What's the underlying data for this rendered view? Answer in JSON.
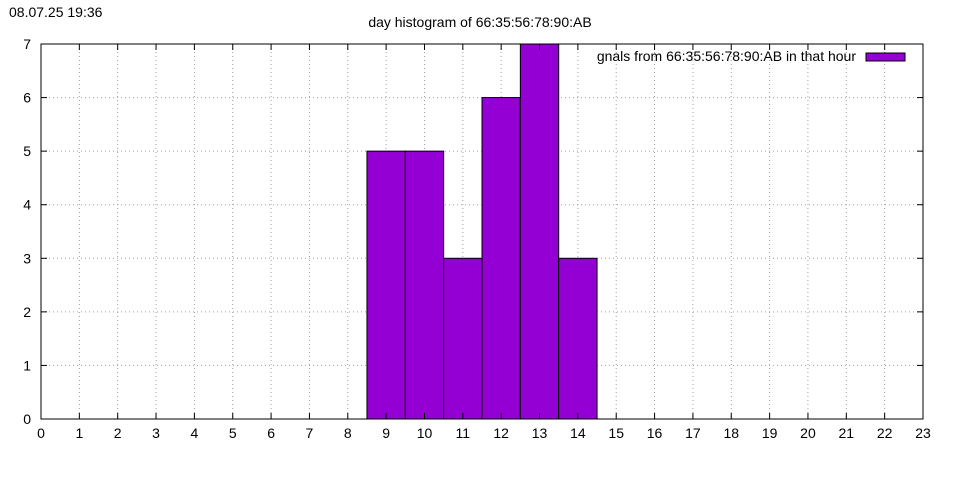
{
  "timestamp": "08.07.25 19:36",
  "chart_data": {
    "type": "bar",
    "title": "day histogram of 66:35:56:78:90:AB",
    "xlabel": "",
    "ylabel": "",
    "xlim": [
      0,
      23
    ],
    "ylim": [
      0,
      7
    ],
    "x_ticks": [
      "0",
      "1",
      "2",
      "3",
      "4",
      "5",
      "6",
      "7",
      "8",
      "9",
      "10",
      "11",
      "12",
      "13",
      "14",
      "15",
      "16",
      "17",
      "18",
      "19",
      "20",
      "21",
      "22",
      "23"
    ],
    "y_ticks": [
      "0",
      "1",
      "2",
      "3",
      "4",
      "5",
      "6",
      "7"
    ],
    "grid": true,
    "legend_position": "top-right",
    "series": [
      {
        "name": "signals from 66:35:56:78:90:AB in that hour",
        "visible_legend_text": "gnals from 66:35:56:78:90:AB in that hour",
        "color": "#9400d3",
        "x": [
          9,
          10,
          11,
          12,
          13,
          14
        ],
        "values": [
          5,
          5,
          3,
          6,
          7,
          3
        ]
      }
    ]
  }
}
